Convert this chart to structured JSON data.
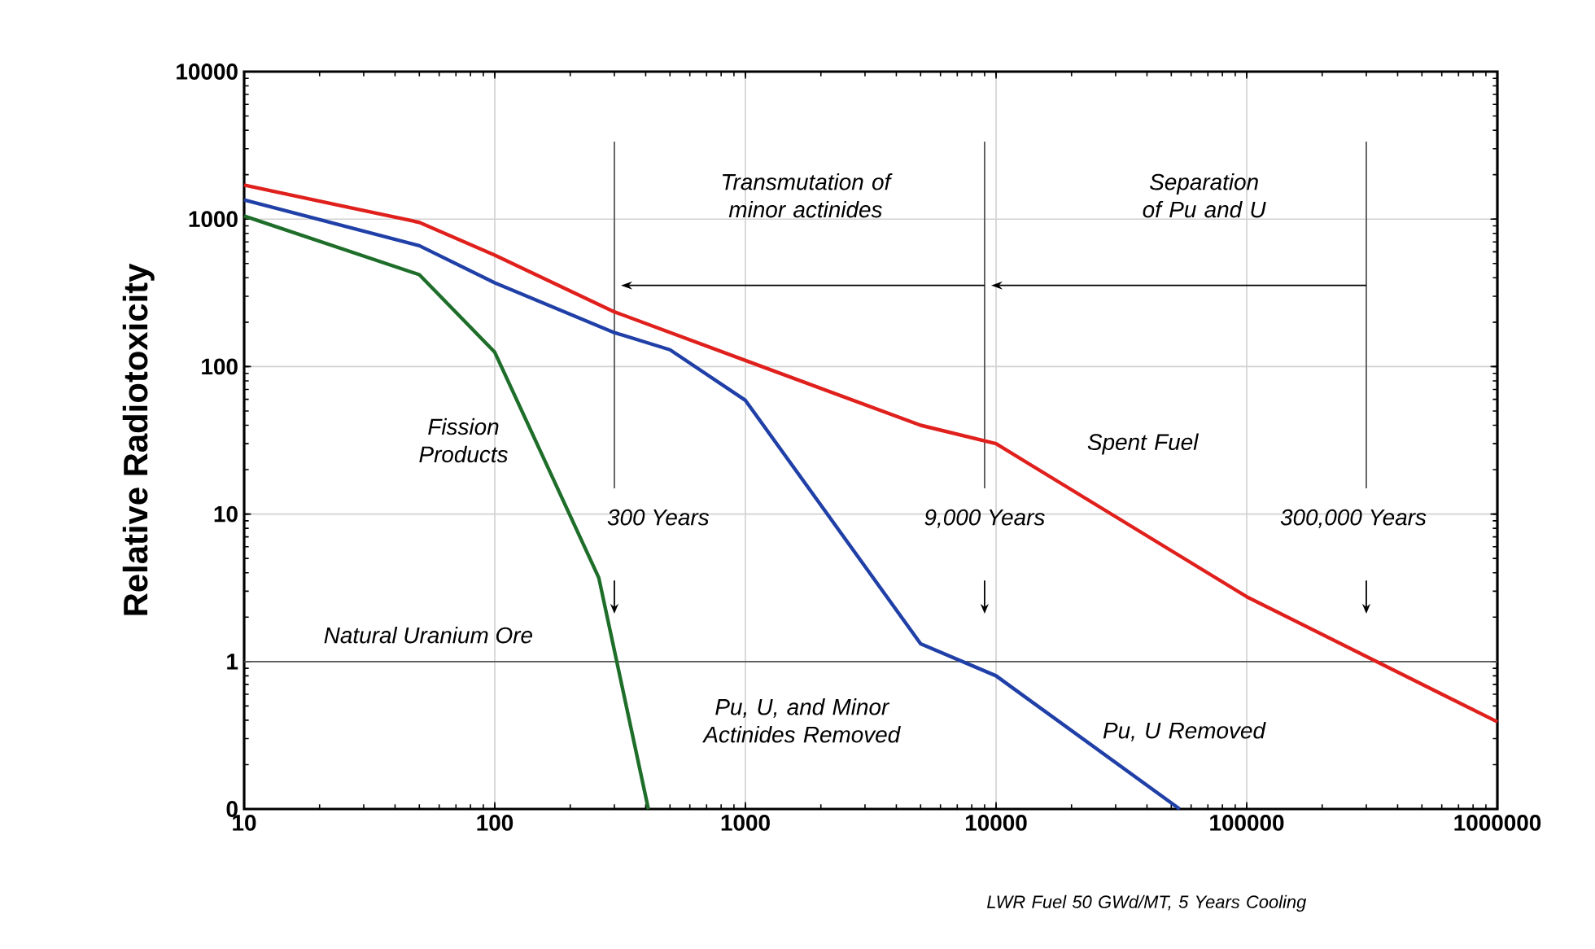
{
  "chart_data": {
    "type": "line",
    "xlabel": null,
    "ylabel": "Relative Radiotoxicity",
    "log": "xy",
    "grid": true,
    "xlim": [
      10,
      1000000
    ],
    "xticks": [
      10,
      100,
      1000,
      10000,
      100000,
      1000000
    ],
    "ylim": [
      0.1,
      10000
    ],
    "yticks": [
      {
        "value": 0.1,
        "label": "0"
      },
      1,
      10,
      100,
      1000,
      10000
    ],
    "series": [
      {
        "name": "Spent Fuel",
        "color": "#e0201c",
        "x": [
          10,
          50,
          100,
          300,
          1000,
          5000,
          10000,
          100000,
          1000000
        ],
        "values": [
          1700,
          950,
          570,
          235,
          110,
          40,
          30,
          2.75,
          0.39
        ]
      },
      {
        "name": "Pu, U Removed",
        "color": "#2040a8",
        "x": [
          10,
          50,
          100,
          300,
          500,
          1000,
          5000,
          10000,
          54000
        ],
        "values": [
          1350,
          660,
          370,
          170,
          130,
          59,
          1.32,
          0.8,
          0.1
        ]
      },
      {
        "name": "Fission Products",
        "color": "#1e6e2a",
        "x": [
          10,
          50,
          100,
          260,
          410
        ],
        "values": [
          1050,
          420,
          125,
          3.7,
          0.1
        ]
      }
    ],
    "ref_lines": [
      {
        "axis": "y",
        "value": 1,
        "label": "Natural Uranium Ore",
        "color": "#555555"
      },
      {
        "axis": "x",
        "value": 300,
        "label": "300 Years",
        "color": "#555555"
      },
      {
        "axis": "x",
        "value": 9000,
        "label": "9,000 Years",
        "color": "#555555"
      },
      {
        "axis": "x",
        "value": 300000,
        "label": "300,000 Years",
        "color": "#555555"
      }
    ],
    "annotations": [
      "Transmutation of minor actinides",
      "Separation of Pu and U",
      "Pu, U,  and Minor Actinides Removed",
      "LWR Fuel 50 GWd/MT, 5 Years Cooling"
    ]
  }
}
